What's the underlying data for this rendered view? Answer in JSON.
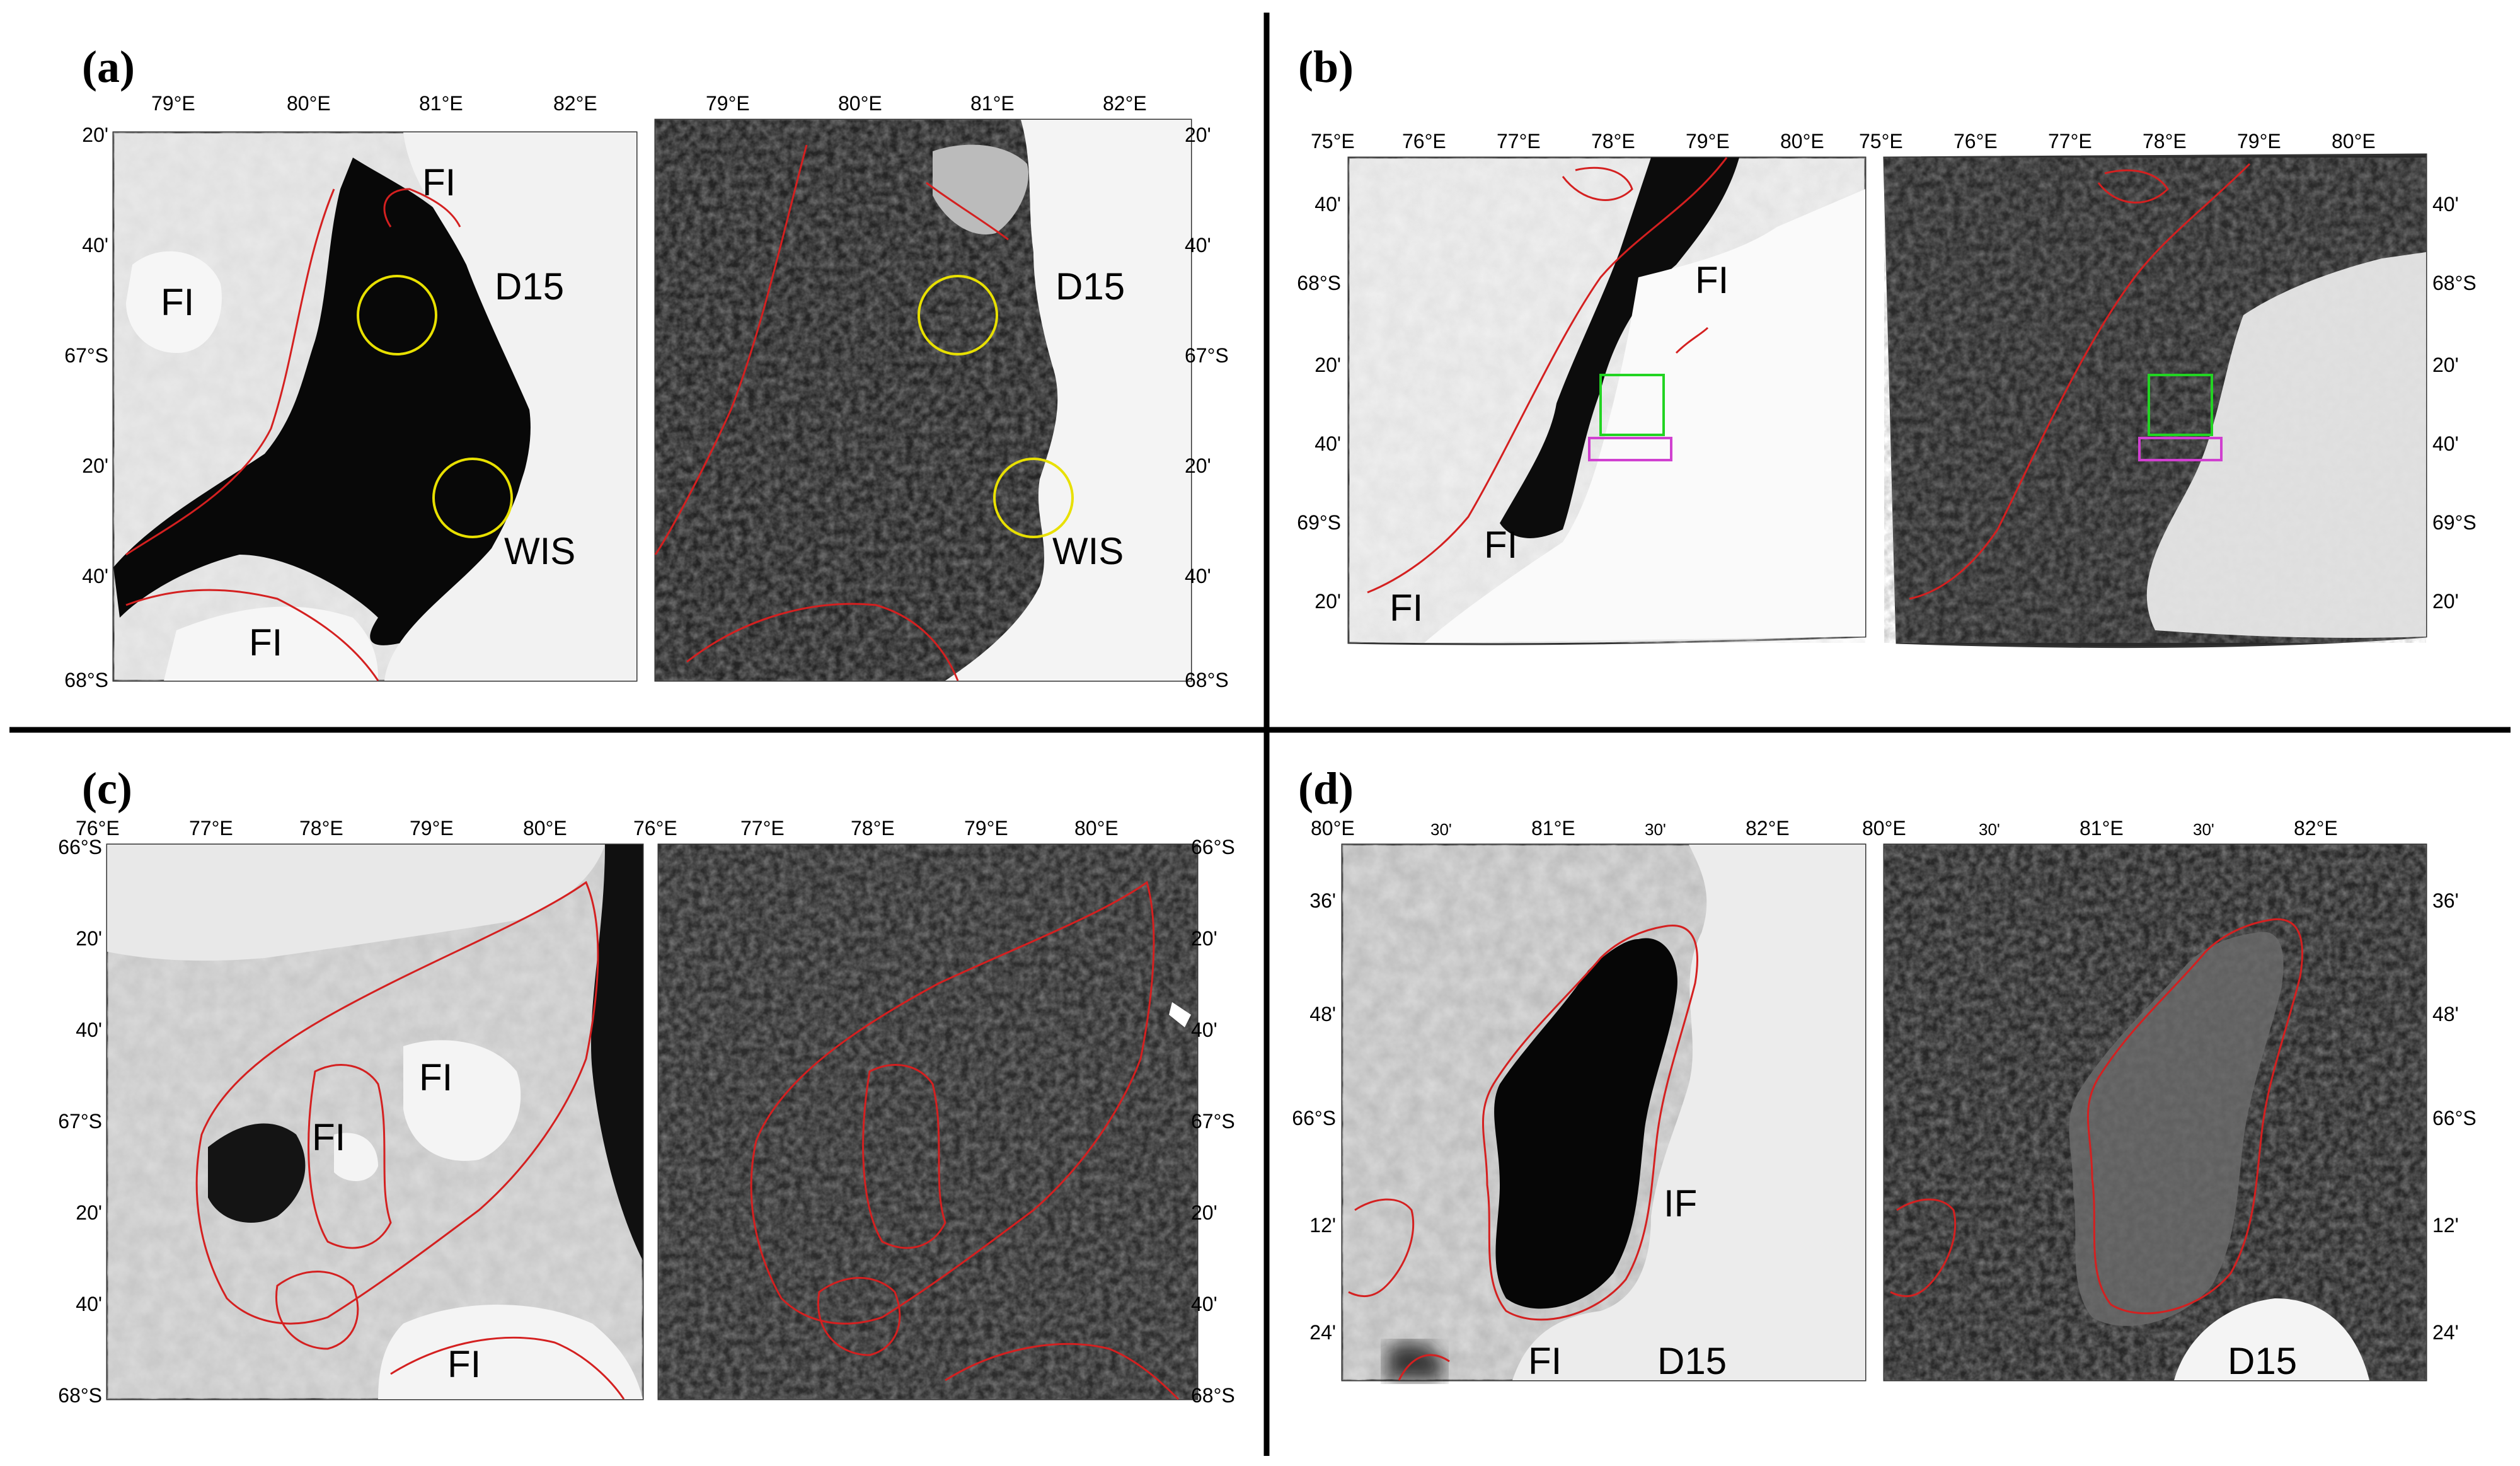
{
  "panels": [
    {
      "id": "a",
      "letter": "(a)",
      "top_axis": [
        "79°E",
        "80°E",
        "81°E",
        "82°E"
      ],
      "left_axis": [
        "20'",
        "40'",
        "67°S",
        "20'",
        "40'",
        "68°S"
      ],
      "right_axis": [
        "20'",
        "40'",
        "67°S",
        "20'",
        "40'",
        "68°S"
      ],
      "labels_left": [
        "FI",
        "FI",
        "D15",
        "WIS",
        "FI"
      ],
      "labels_right": [
        "D15",
        "WIS"
      ],
      "markers": [
        "yellow-circle",
        "yellow-circle"
      ]
    },
    {
      "id": "b",
      "letter": "(b)",
      "top_axis_left": [
        "75°E",
        "76°E",
        "77°E",
        "78°E",
        "79°E",
        "80°E"
      ],
      "top_axis_right": [
        "75°E",
        "76°E",
        "77°E",
        "78°E",
        "79°E",
        "80°E"
      ],
      "left_axis": [
        "40'",
        "68°S",
        "20'",
        "40'",
        "69°S",
        "20'"
      ],
      "right_axis": [
        "40'",
        "68°S",
        "20'",
        "40'",
        "69°S",
        "20'"
      ],
      "labels_left": [
        "FI",
        "FI",
        "FI"
      ],
      "markers": [
        "green-box",
        "magenta-box"
      ]
    },
    {
      "id": "c",
      "letter": "(c)",
      "top_axis_left": [
        "76°E",
        "77°E",
        "78°E",
        "79°E",
        "80°E"
      ],
      "top_axis_right": [
        "76°E",
        "77°E",
        "78°E",
        "79°E",
        "80°E"
      ],
      "left_axis": [
        "66°S",
        "20'",
        "40'",
        "67°S",
        "20'",
        "40'",
        "68°S"
      ],
      "right_axis": [
        "66°S",
        "20'",
        "40'",
        "67°S",
        "20'",
        "40'",
        "68°S"
      ],
      "labels_left": [
        "FI",
        "FI",
        "FI"
      ]
    },
    {
      "id": "d",
      "letter": "(d)",
      "top_axis_left": [
        "80°E",
        "30'",
        "81°E",
        "30'",
        "82°E"
      ],
      "top_axis_right": [
        "80°E",
        "30'",
        "81°E",
        "30'",
        "82°E"
      ],
      "left_axis": [
        "36'",
        "48'",
        "66°S",
        "12'",
        "24'"
      ],
      "right_axis": [
        "36'",
        "48'",
        "66°S",
        "12'",
        "24'"
      ],
      "labels_left": [
        "IF",
        "FI",
        "D15"
      ],
      "labels_right": [
        "D15"
      ]
    }
  ],
  "colors": {
    "boundary": "#d42020",
    "marker_yellow": "#e8e000",
    "marker_green": "#22d422",
    "marker_magenta": "#d040d0",
    "divider": "#000000"
  }
}
